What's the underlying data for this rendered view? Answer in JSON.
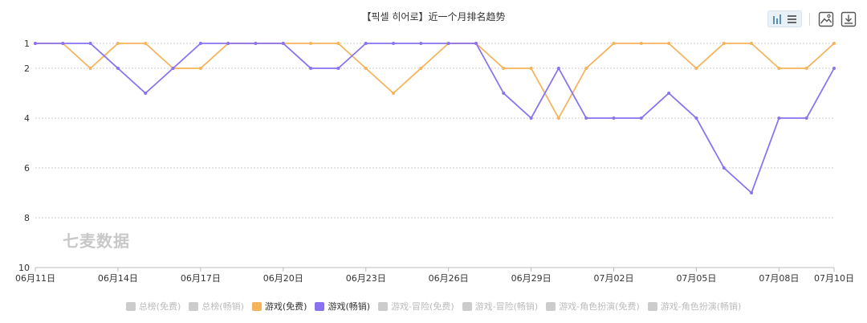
{
  "title": "【픽셀 히어로】近一个月排名趋势",
  "watermark": "七麦数据",
  "toolbar": {
    "chart_type_icons": [
      "bar-chart-icon",
      "list-icon"
    ],
    "save_image_icon": "image-icon",
    "download_icon": "download-icon"
  },
  "colors": {
    "free": "#f5b45c",
    "paid": "#8a72f0",
    "inactive": "#cccccc",
    "axis": "#bbbbbb",
    "grid": "#cccccc"
  },
  "legend": [
    {
      "label": "总榜(免费)",
      "active": false
    },
    {
      "label": "总榜(畅销)",
      "active": false
    },
    {
      "label": "游戏(免费)",
      "active": true,
      "color": "#f5b45c"
    },
    {
      "label": "游戏(畅销)",
      "active": true,
      "color": "#8a72f0"
    },
    {
      "label": "游戏-冒险(免费)",
      "active": false
    },
    {
      "label": "游戏-冒险(畅销)",
      "active": false
    },
    {
      "label": "游戏-角色扮演(免费)",
      "active": false
    },
    {
      "label": "游戏-角色扮演(畅销)",
      "active": false
    }
  ],
  "chart_data": {
    "type": "line",
    "title": "【픽셀 히어로】近一个月排名趋势",
    "y_inverted": true,
    "ylim": [
      1,
      10
    ],
    "y_ticks": [
      1,
      2,
      4,
      6,
      8,
      10
    ],
    "grid": true,
    "legend_position": "bottom",
    "x": [
      "06月11日",
      "06月12日",
      "06月13日",
      "06月14日",
      "06月15日",
      "06月16日",
      "06月17日",
      "06月18日",
      "06月19日",
      "06月20日",
      "06月21日",
      "06月22日",
      "06月23日",
      "06月24日",
      "06月25日",
      "06月26日",
      "06月27日",
      "06月28日",
      "06月29日",
      "06月30日",
      "07月01日",
      "07月02日",
      "07月03日",
      "07月04日",
      "07月05日",
      "07月06日",
      "07月07日",
      "07月08日",
      "07月09日",
      "07月10日"
    ],
    "x_tick_labels": [
      "06月11日",
      "06月14日",
      "06月17日",
      "06月20日",
      "06月23日",
      "06月26日",
      "06月29日",
      "07月02日",
      "07月05日",
      "07月08日",
      "07月10日"
    ],
    "series": [
      {
        "name": "游戏(免费)",
        "color": "#f5b45c",
        "values": [
          1,
          1,
          2,
          1,
          1,
          2,
          2,
          1,
          1,
          1,
          1,
          1,
          2,
          3,
          2,
          1,
          1,
          2,
          2,
          4,
          2,
          1,
          1,
          1,
          2,
          1,
          1,
          2,
          2,
          1
        ]
      },
      {
        "name": "游戏(畅销)",
        "color": "#8a72f0",
        "values": [
          1,
          1,
          1,
          2,
          3,
          2,
          1,
          1,
          1,
          1,
          2,
          2,
          1,
          1,
          1,
          1,
          1,
          3,
          4,
          2,
          4,
          4,
          4,
          3,
          4,
          6,
          7,
          4,
          4,
          2
        ]
      }
    ]
  }
}
